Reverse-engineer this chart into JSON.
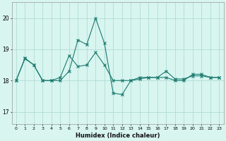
{
  "xlabel": "Humidex (Indice chaleur)",
  "x_ticks": [
    0,
    1,
    2,
    3,
    4,
    5,
    6,
    7,
    8,
    9,
    10,
    11,
    12,
    13,
    14,
    15,
    16,
    17,
    18,
    19,
    20,
    21,
    22,
    23
  ],
  "y_ticks": [
    17,
    18,
    19,
    20
  ],
  "ylim": [
    16.6,
    20.5
  ],
  "xlim": [
    -0.5,
    23.5
  ],
  "line1_x": [
    0,
    1,
    2,
    3,
    4,
    5,
    6,
    7,
    8,
    9,
    10,
    11,
    12,
    13,
    14,
    15,
    16,
    17,
    18,
    19,
    20,
    21,
    22,
    23
  ],
  "line1_y": [
    18.0,
    18.7,
    18.5,
    18.0,
    18.0,
    18.0,
    18.3,
    19.3,
    19.15,
    20.0,
    19.2,
    17.6,
    17.55,
    18.0,
    18.1,
    18.1,
    18.1,
    18.1,
    18.0,
    18.0,
    18.2,
    18.2,
    18.1,
    18.1
  ],
  "line2_x": [
    0,
    1,
    2,
    3,
    4,
    5,
    6,
    7,
    8,
    9,
    10,
    11,
    12,
    13,
    14,
    15,
    16,
    17,
    18,
    19,
    20,
    21,
    22,
    23
  ],
  "line2_y": [
    18.0,
    18.72,
    18.5,
    18.0,
    18.0,
    18.1,
    18.8,
    18.45,
    18.5,
    18.9,
    18.5,
    18.0,
    18.0,
    18.0,
    18.05,
    18.1,
    18.1,
    18.3,
    18.05,
    18.05,
    18.15,
    18.15,
    18.1,
    18.1
  ],
  "color": "#1a7a6e",
  "bg_color": "#d8f5f0",
  "grid_color": "#aad8d0"
}
